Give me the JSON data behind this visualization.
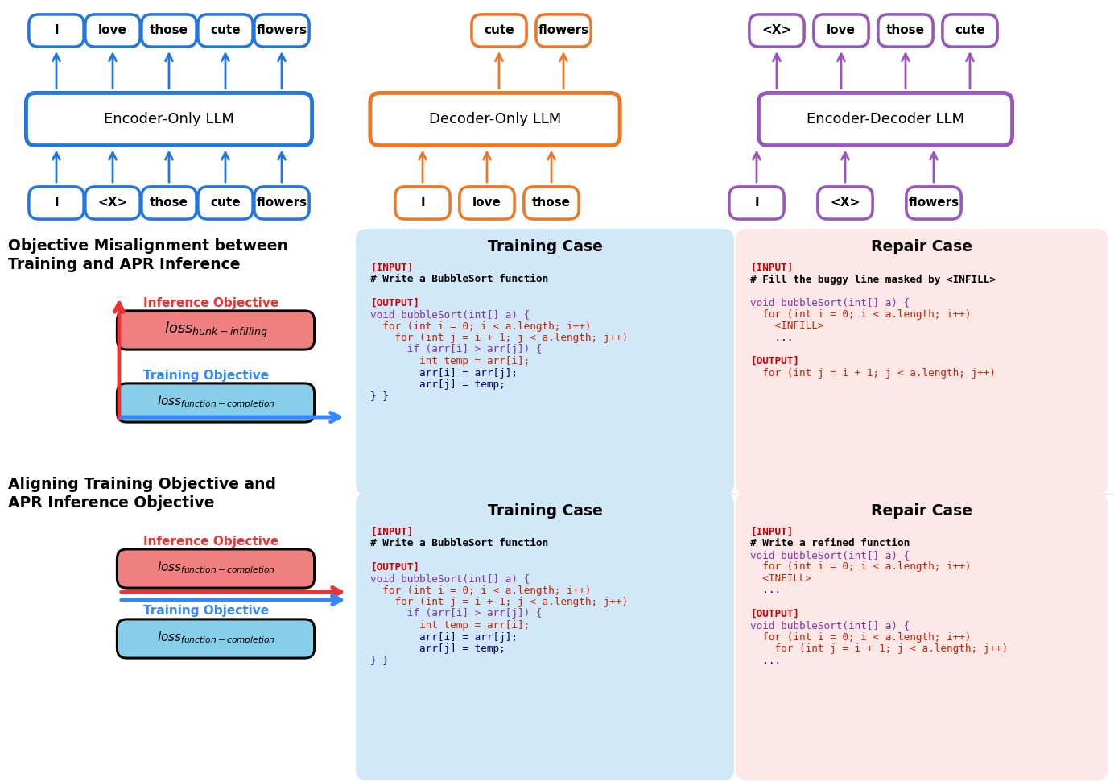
{
  "fig_width": 13.84,
  "fig_height": 9.71,
  "bg_color": "#ffffff",
  "blue_color": "#2277DD",
  "orange_color": "#EE7722",
  "purple_color": "#9955BB",
  "red_color": "#EE3333",
  "blue_arrow": "#3388FF",
  "encoder_only_tokens_top": [
    "I",
    "love",
    "those",
    "cute",
    "flowers"
  ],
  "encoder_only_tokens_bottom": [
    "I",
    "<X>",
    "those",
    "cute",
    "flowers"
  ],
  "decoder_only_tokens_top": [
    "cute",
    "flowers"
  ],
  "decoder_only_tokens_bottom": [
    "I",
    "love",
    "those"
  ],
  "encoder_decoder_tokens_top": [
    "<X>",
    "love",
    "those",
    "cute"
  ],
  "encoder_decoder_tokens_bottom": [
    "I",
    "<X>",
    "flowers"
  ],
  "training_case1_lines": [
    {
      "text": "[INPUT]",
      "color": "#CC0000",
      "bold": true
    },
    {
      "text": "# Write a BubbleSort function",
      "color": "#000000",
      "bold": true
    },
    {
      "text": "",
      "color": "#000000",
      "bold": false
    },
    {
      "text": "[OUTPUT]",
      "color": "#CC0000",
      "bold": true
    },
    {
      "text": "void bubbleSort(int[] a) {",
      "color": "#8833AA",
      "bold": false
    },
    {
      "text": "  for (int i = 0; i < a.length; i++)",
      "color": "#CC2200",
      "bold": false
    },
    {
      "text": "    for (int j = i + 1; j < a.length; j++)",
      "color": "#CC2200",
      "bold": false
    },
    {
      "text": "      if (arr[i] > arr[j]) {",
      "color": "#8833AA",
      "bold": false
    },
    {
      "text": "        int temp = arr[i];",
      "color": "#CC2200",
      "bold": false
    },
    {
      "text": "        arr[i] = arr[j];",
      "color": "#000088",
      "bold": false
    },
    {
      "text": "        arr[j] = temp;",
      "color": "#000088",
      "bold": false
    },
    {
      "text": "} }",
      "color": "#000088",
      "bold": false
    }
  ],
  "repair_case1_lines": [
    {
      "text": "[INPUT]",
      "color": "#CC0000",
      "bold": true
    },
    {
      "text": "# Fill the buggy line masked by <INFILL>",
      "color": "#000000",
      "bold": true
    },
    {
      "text": "",
      "color": "#000000",
      "bold": false
    },
    {
      "text": "void bubbleSort(int[] a) {",
      "color": "#8833AA",
      "bold": false
    },
    {
      "text": "  for (int i = 0; i < a.length; i++)",
      "color": "#CC2200",
      "bold": false
    },
    {
      "text": "    <INFILL>",
      "color": "#CC2200",
      "bold": false
    },
    {
      "text": "    ...",
      "color": "#000088",
      "bold": false
    },
    {
      "text": "",
      "color": "#000000",
      "bold": false
    },
    {
      "text": "[OUTPUT]",
      "color": "#CC0000",
      "bold": true
    },
    {
      "text": "  for (int j = i + 1; j < a.length; j++)",
      "color": "#CC2200",
      "bold": false
    }
  ],
  "training_case2_lines": [
    {
      "text": "[INPUT]",
      "color": "#CC0000",
      "bold": true
    },
    {
      "text": "# Write a BubbleSort function",
      "color": "#000000",
      "bold": true
    },
    {
      "text": "",
      "color": "#000000",
      "bold": false
    },
    {
      "text": "[OUTPUT]",
      "color": "#CC0000",
      "bold": true
    },
    {
      "text": "void bubbleSort(int[] a) {",
      "color": "#8833AA",
      "bold": false
    },
    {
      "text": "  for (int i = 0; i < a.length; i++)",
      "color": "#CC2200",
      "bold": false
    },
    {
      "text": "    for (int j = i + 1; j < a.length; j++)",
      "color": "#CC2200",
      "bold": false
    },
    {
      "text": "      if (arr[i] > arr[j]) {",
      "color": "#8833AA",
      "bold": false
    },
    {
      "text": "        int temp = arr[i];",
      "color": "#CC2200",
      "bold": false
    },
    {
      "text": "        arr[i] = arr[j];",
      "color": "#000088",
      "bold": false
    },
    {
      "text": "        arr[j] = temp;",
      "color": "#000088",
      "bold": false
    },
    {
      "text": "} }",
      "color": "#000088",
      "bold": false
    }
  ],
  "repair_case2_lines": [
    {
      "text": "[INPUT]",
      "color": "#CC0000",
      "bold": true
    },
    {
      "text": "# Write a refined function",
      "color": "#000000",
      "bold": true
    },
    {
      "text": "void bubbleSort(int[] a) {",
      "color": "#8833AA",
      "bold": false
    },
    {
      "text": "  for (int i = 0; i < a.length; i++)",
      "color": "#CC2200",
      "bold": false
    },
    {
      "text": "  <INFILL>",
      "color": "#CC2200",
      "bold": false
    },
    {
      "text": "  ...",
      "color": "#000088",
      "bold": false
    },
    {
      "text": "",
      "color": "#000000",
      "bold": false
    },
    {
      "text": "[OUTPUT]",
      "color": "#CC0000",
      "bold": true
    },
    {
      "text": "void bubbleSort(int[] a) {",
      "color": "#8833AA",
      "bold": false
    },
    {
      "text": "  for (int i = 0; i < a.length; i++)",
      "color": "#CC2200",
      "bold": false
    },
    {
      "text": "    for (int j = i + 1; j < a.length; j++)",
      "color": "#CC2200",
      "bold": false
    },
    {
      "text": "  ...",
      "color": "#000088",
      "bold": false
    }
  ]
}
